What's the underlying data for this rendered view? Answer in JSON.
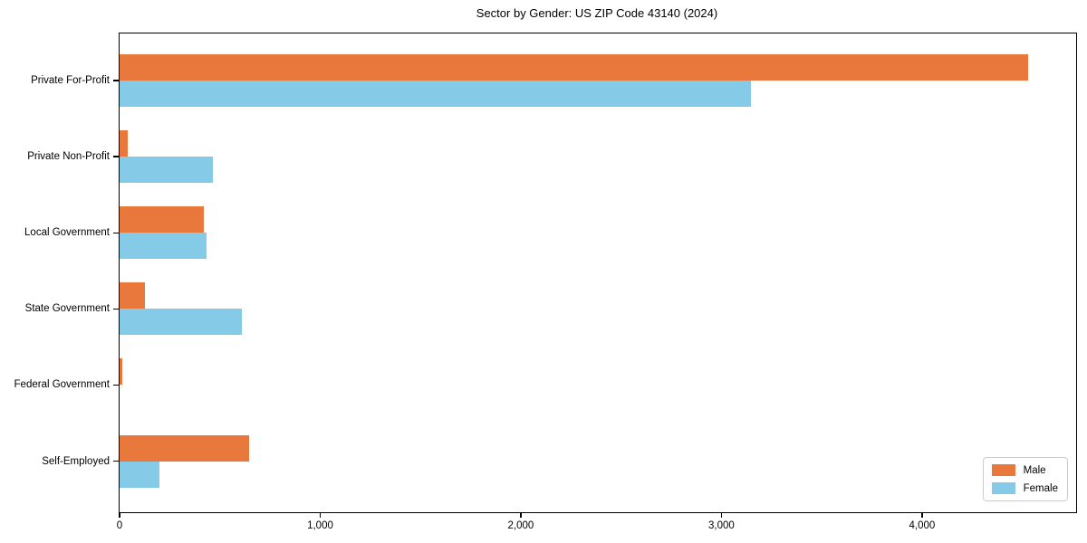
{
  "title": "Sector by Gender: US ZIP Code 43140 (2024)",
  "chart_data": {
    "type": "bar",
    "orientation": "horizontal",
    "title": "Sector by Gender: US ZIP Code 43140 (2024)",
    "categories": [
      "Private For-Profit",
      "Private Non-Profit",
      "Local Government",
      "State Government",
      "Federal Government",
      "Self-Employed"
    ],
    "series": [
      {
        "name": "Male",
        "color": "#E8783C",
        "values": [
          4530,
          40,
          420,
          125,
          15,
          645
        ]
      },
      {
        "name": "Female",
        "color": "#85CBE8",
        "values": [
          3145,
          465,
          435,
          610,
          0,
          200
        ]
      }
    ],
    "xlabel": "",
    "ylabel": "",
    "xlim": [
      0,
      4768
    ],
    "xticks": [
      0,
      1000,
      2000,
      3000,
      4000
    ],
    "xtick_labels": [
      "0",
      "1,000",
      "2,000",
      "3,000",
      "4,000"
    ],
    "grid": false,
    "legend_position": "lower right",
    "bar_order_in_group": [
      "Male",
      "Female"
    ]
  }
}
